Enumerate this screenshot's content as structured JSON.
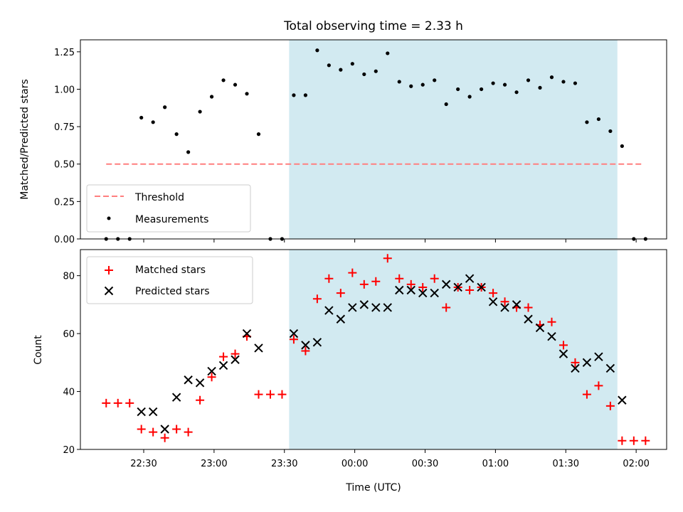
{
  "chart_data": [
    {
      "type": "scatter",
      "title": "Total observing time = 2.33 h",
      "xlabel": "",
      "ylabel": "Matched/Predicted stars",
      "ylim": [
        0,
        1.33
      ],
      "yticks": [
        0.0,
        0.25,
        0.5,
        0.75,
        1.0,
        1.25
      ],
      "ytick_labels": [
        "0.00",
        "0.25",
        "0.50",
        "0.75",
        "1.00",
        "1.25"
      ],
      "xlim": [
        "22:03",
        "02:13"
      ],
      "highlight_span": [
        "23:32",
        "01:52"
      ],
      "legend": {
        "position": "lower-left",
        "entries": [
          "Threshold",
          "Measurements"
        ]
      },
      "threshold": {
        "name": "Threshold",
        "x": [
          "22:14",
          "02:03"
        ],
        "y": 0.5,
        "color": "#ff7f7f"
      },
      "series": [
        {
          "name": "Measurements",
          "color": "#000000",
          "x": [
            "22:14",
            "22:19",
            "22:24",
            "22:29",
            "22:34",
            "22:39",
            "22:44",
            "22:49",
            "22:54",
            "22:59",
            "23:04",
            "23:09",
            "23:14",
            "23:19",
            "23:24",
            "23:29",
            "23:34",
            "23:39",
            "23:44",
            "23:49",
            "23:54",
            "23:59",
            "00:04",
            "00:09",
            "00:14",
            "00:19",
            "00:24",
            "00:29",
            "00:34",
            "00:39",
            "00:44",
            "00:49",
            "00:54",
            "00:59",
            "01:04",
            "01:09",
            "01:14",
            "01:19",
            "01:24",
            "01:29",
            "01:34",
            "01:39",
            "01:44",
            "01:49",
            "01:54",
            "01:59",
            "02:04"
          ],
          "y": [
            0.0,
            0.0,
            0.0,
            0.81,
            0.78,
            0.88,
            0.7,
            0.58,
            0.85,
            0.95,
            1.06,
            1.03,
            0.97,
            0.7,
            0.0,
            0.0,
            0.96,
            0.96,
            1.26,
            1.16,
            1.13,
            1.17,
            1.1,
            1.12,
            1.24,
            1.05,
            1.02,
            1.03,
            1.06,
            0.9,
            1.0,
            0.95,
            1.0,
            1.04,
            1.03,
            0.98,
            1.06,
            1.01,
            1.08,
            1.05,
            1.04,
            0.78,
            0.8,
            0.72,
            0.62,
            0.0,
            0.0
          ]
        }
      ]
    },
    {
      "type": "scatter",
      "title": "",
      "xlabel": "Time (UTC)",
      "ylabel": "Count",
      "ylim": [
        20,
        89
      ],
      "yticks": [
        20,
        40,
        60,
        80
      ],
      "ytick_labels": [
        "20",
        "40",
        "60",
        "80"
      ],
      "xlim": [
        "22:03",
        "02:13"
      ],
      "xticks": [
        "22:30",
        "23:00",
        "23:30",
        "00:00",
        "00:30",
        "01:00",
        "01:30",
        "02:00"
      ],
      "highlight_span": [
        "23:32",
        "01:52"
      ],
      "legend": {
        "position": "top-left",
        "entries": [
          "Matched stars",
          "Predicted stars"
        ]
      },
      "series": [
        {
          "name": "Matched stars",
          "color": "#ff0000",
          "marker": "plus",
          "x": [
            "22:14",
            "22:19",
            "22:24",
            "22:29",
            "22:34",
            "22:39",
            "22:44",
            "22:49",
            "22:54",
            "22:59",
            "23:04",
            "23:09",
            "23:14",
            "23:19",
            "23:24",
            "23:29",
            "23:34",
            "23:39",
            "23:44",
            "23:49",
            "23:54",
            "23:59",
            "00:04",
            "00:09",
            "00:14",
            "00:19",
            "00:24",
            "00:29",
            "00:34",
            "00:39",
            "00:44",
            "00:49",
            "00:54",
            "00:59",
            "01:04",
            "01:09",
            "01:14",
            "01:19",
            "01:24",
            "01:29",
            "01:34",
            "01:39",
            "01:44",
            "01:49",
            "01:54",
            "01:59",
            "02:04"
          ],
          "y": [
            36,
            36,
            36,
            27,
            26,
            24,
            27,
            26,
            37,
            45,
            52,
            53,
            59,
            39,
            39,
            39,
            58,
            54,
            72,
            79,
            74,
            81,
            77,
            78,
            86,
            79,
            77,
            76,
            79,
            69,
            76,
            75,
            76,
            74,
            71,
            69,
            69,
            63,
            64,
            56,
            50,
            39,
            42,
            35,
            23,
            23,
            23
          ]
        },
        {
          "name": "Predicted stars",
          "color": "#000000",
          "marker": "x",
          "x": [
            "22:29",
            "22:34",
            "22:39",
            "22:44",
            "22:49",
            "22:54",
            "22:59",
            "23:04",
            "23:09",
            "23:14",
            "23:19",
            "23:34",
            "23:39",
            "23:44",
            "23:49",
            "23:54",
            "23:59",
            "00:04",
            "00:09",
            "00:14",
            "00:19",
            "00:24",
            "00:29",
            "00:34",
            "00:39",
            "00:44",
            "00:49",
            "00:54",
            "00:59",
            "01:04",
            "01:09",
            "01:14",
            "01:19",
            "01:24",
            "01:29",
            "01:34",
            "01:39",
            "01:44",
            "01:49",
            "01:54"
          ],
          "y": [
            33,
            33,
            27,
            38,
            44,
            43,
            47,
            49,
            51,
            60,
            55,
            60,
            56,
            57,
            68,
            65,
            69,
            70,
            69,
            69,
            75,
            75,
            74,
            74,
            77,
            76,
            79,
            76,
            71,
            69,
            70,
            65,
            62,
            59,
            53,
            48,
            50,
            52,
            48,
            37
          ]
        }
      ]
    }
  ]
}
